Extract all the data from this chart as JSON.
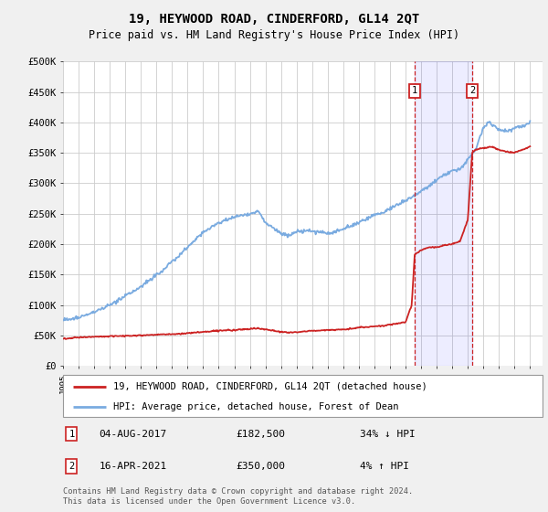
{
  "title": "19, HEYWOOD ROAD, CINDERFORD, GL14 2QT",
  "subtitle": "Price paid vs. HM Land Registry's House Price Index (HPI)",
  "ylim": [
    0,
    500000
  ],
  "yticks": [
    0,
    50000,
    100000,
    150000,
    200000,
    250000,
    300000,
    350000,
    400000,
    450000,
    500000
  ],
  "ytick_labels": [
    "£0",
    "£50K",
    "£100K",
    "£150K",
    "£200K",
    "£250K",
    "£300K",
    "£350K",
    "£400K",
    "£450K",
    "£500K"
  ],
  "xlim_start": 1995.0,
  "xlim_end": 2025.8,
  "xtick_years": [
    1995,
    1996,
    1997,
    1998,
    1999,
    2000,
    2001,
    2002,
    2003,
    2004,
    2005,
    2006,
    2007,
    2008,
    2009,
    2010,
    2011,
    2012,
    2013,
    2014,
    2015,
    2016,
    2017,
    2018,
    2019,
    2020,
    2021,
    2022,
    2023,
    2024,
    2025
  ],
  "hpi_color": "#7aabe0",
  "price_color": "#cc2222",
  "event1_x": 2017.58,
  "event1_label": "1",
  "event1_date": "04-AUG-2017",
  "event1_price": "£182,500",
  "event1_pct": "34% ↓ HPI",
  "event2_x": 2021.28,
  "event2_label": "2",
  "event2_date": "16-APR-2021",
  "event2_price": "£350,000",
  "event2_pct": "4% ↑ HPI",
  "legend_line1": "19, HEYWOOD ROAD, CINDERFORD, GL14 2QT (detached house)",
  "legend_line2": "HPI: Average price, detached house, Forest of Dean",
  "footer": "Contains HM Land Registry data © Crown copyright and database right 2024.\nThis data is licensed under the Open Government Licence v3.0.",
  "background_color": "#f0f0f0",
  "plot_bg_color": "#ffffff",
  "grid_color": "#cccccc",
  "hpi_nodes_x": [
    1995,
    1996,
    1997,
    1998,
    1999,
    2000,
    2001,
    2002,
    2003,
    2004,
    2005,
    2006,
    2007,
    2007.5,
    2008,
    2009,
    2009.5,
    2010,
    2011,
    2012,
    2012.5,
    2013,
    2014,
    2015,
    2015.5,
    2016,
    2016.5,
    2017,
    2017.5,
    2018,
    2018.5,
    2019,
    2019.5,
    2020,
    2020.3,
    2020.6,
    2021,
    2021.5,
    2022,
    2022.3,
    2022.7,
    2023,
    2023.5,
    2024,
    2024.5,
    2025
  ],
  "hpi_nodes_y": [
    75000,
    80000,
    88000,
    100000,
    115000,
    130000,
    150000,
    170000,
    195000,
    220000,
    235000,
    245000,
    250000,
    255000,
    235000,
    218000,
    215000,
    220000,
    222000,
    218000,
    220000,
    225000,
    235000,
    248000,
    252000,
    258000,
    265000,
    272000,
    278000,
    288000,
    295000,
    305000,
    315000,
    320000,
    322000,
    325000,
    340000,
    355000,
    390000,
    400000,
    395000,
    388000,
    385000,
    390000,
    395000,
    400000
  ],
  "price_nodes_x": [
    1995,
    1995.5,
    1996,
    1997,
    1997.5,
    1998,
    1999,
    1999.5,
    2000,
    2000.5,
    2001,
    2001.5,
    2002,
    2002.5,
    2003,
    2003.5,
    2004,
    2004.5,
    2005,
    2005.5,
    2006,
    2006.5,
    2007,
    2007.5,
    2008,
    2008.5,
    2009,
    2009.5,
    2010,
    2010.5,
    2011,
    2011.5,
    2012,
    2012.5,
    2013,
    2013.5,
    2014,
    2014.5,
    2015,
    2015.5,
    2016,
    2016.5,
    2017,
    2017.4,
    2017.58,
    2017.7,
    2018,
    2018.5,
    2019,
    2019.5,
    2020,
    2020.5,
    2021.0,
    2021.28,
    2021.5,
    2022,
    2022.5,
    2023,
    2023.5,
    2024,
    2024.5,
    2025
  ],
  "price_nodes_y": [
    45000,
    46000,
    47000,
    48000,
    48500,
    49000,
    49500,
    50000,
    50500,
    51000,
    51500,
    52000,
    52500,
    53000,
    54000,
    55000,
    56000,
    57000,
    58000,
    58500,
    59000,
    60000,
    61000,
    62000,
    60000,
    58000,
    56000,
    55000,
    56000,
    57000,
    58000,
    58500,
    59000,
    59500,
    60000,
    61000,
    63000,
    64000,
    65000,
    66000,
    68000,
    70000,
    72000,
    100000,
    182500,
    185000,
    190000,
    195000,
    195000,
    198000,
    200000,
    205000,
    240000,
    350000,
    355000,
    358000,
    360000,
    355000,
    352000,
    350000,
    355000,
    360000
  ]
}
